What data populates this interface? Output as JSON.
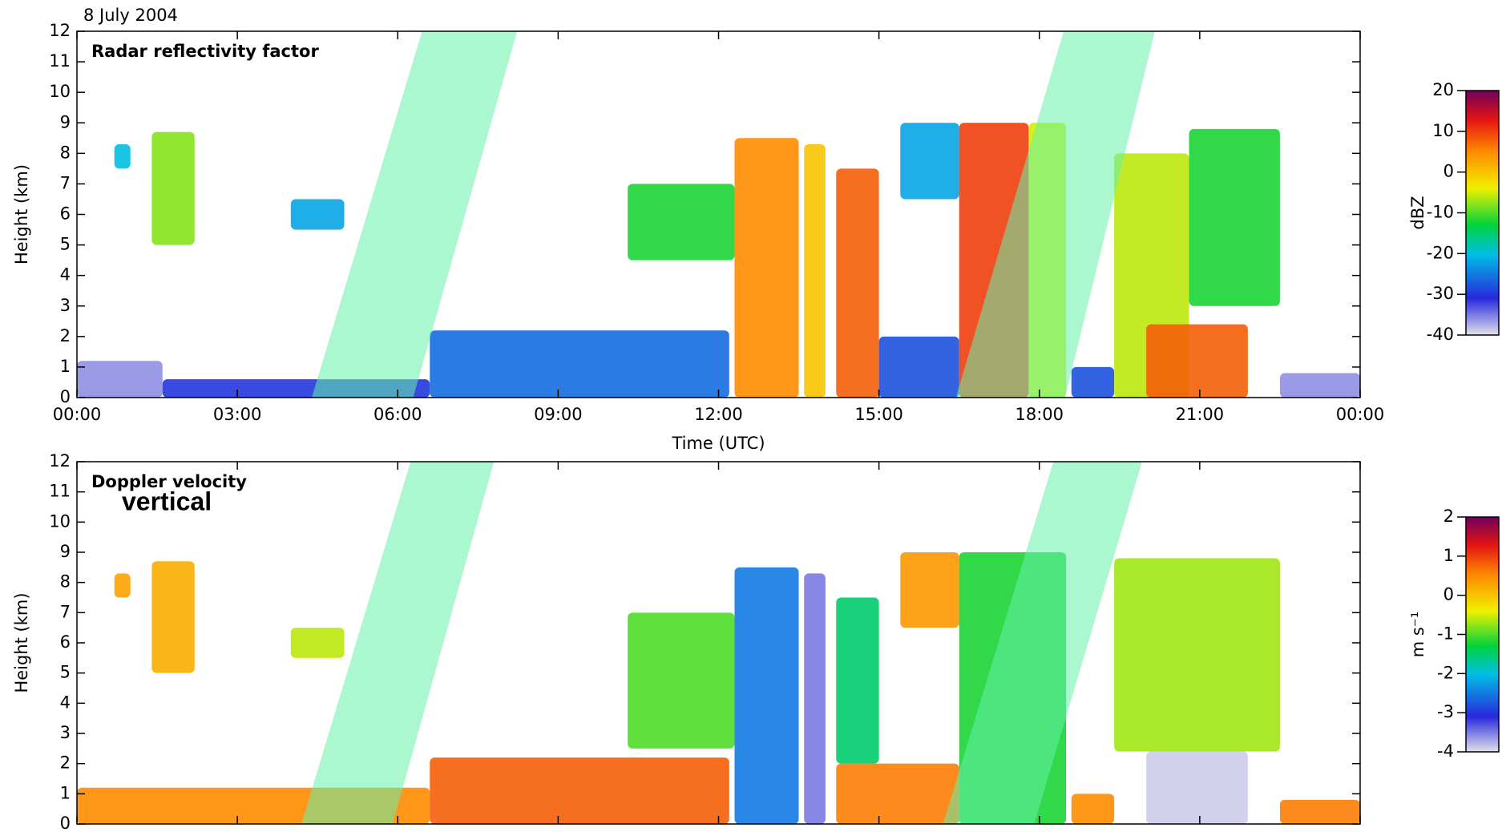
{
  "title": "8 July 2004",
  "chart_data": [
    {
      "type": "heatmap",
      "title": "Radar reflectivity factor",
      "xlabel": "Time (UTC)",
      "ylabel": "Height (km)",
      "xlim": [
        0,
        24
      ],
      "xticks": [
        {
          "value": 0,
          "label": "00:00"
        },
        {
          "value": 3,
          "label": "03:00"
        },
        {
          "value": 6,
          "label": "06:00"
        },
        {
          "value": 9,
          "label": "09:00"
        },
        {
          "value": 12,
          "label": "12:00"
        },
        {
          "value": 15,
          "label": "15:00"
        },
        {
          "value": 18,
          "label": "18:00"
        },
        {
          "value": 21,
          "label": "21:00"
        },
        {
          "value": 24,
          "label": "00:00"
        }
      ],
      "ylim": [
        0,
        12
      ],
      "yticks": [
        0,
        1,
        2,
        3,
        4,
        5,
        6,
        7,
        8,
        9,
        10,
        11,
        12
      ],
      "colorbar": {
        "label": "dBZ",
        "lim": [
          -40,
          20
        ],
        "ticks": [
          -40,
          -30,
          -20,
          -10,
          0,
          10,
          20
        ]
      },
      "cells": [
        {
          "start": 0.0,
          "end": 1.6,
          "base": 0,
          "top": 1.2,
          "value": -36
        },
        {
          "start": 1.6,
          "end": 6.6,
          "base": 0,
          "top": 0.6,
          "value": -30
        },
        {
          "start": 0.7,
          "end": 1.0,
          "base": 7.5,
          "top": 8.3,
          "value": -20
        },
        {
          "start": 1.4,
          "end": 2.2,
          "base": 5,
          "top": 8.7,
          "value": -8
        },
        {
          "start": 4.0,
          "end": 5.0,
          "base": 5.5,
          "top": 6.5,
          "value": -22
        },
        {
          "start": 6.6,
          "end": 12.2,
          "base": 0,
          "top": 2.2,
          "value": -26
        },
        {
          "start": 10.3,
          "end": 12.3,
          "base": 4.5,
          "top": 7,
          "value": -12
        },
        {
          "start": 12.3,
          "end": 13.5,
          "base": 0,
          "top": 8.5,
          "value": 5
        },
        {
          "start": 13.6,
          "end": 14.0,
          "base": 0,
          "top": 8.3,
          "value": 0
        },
        {
          "start": 14.2,
          "end": 15.0,
          "base": 0,
          "top": 7.5,
          "value": 8
        },
        {
          "start": 15.0,
          "end": 16.5,
          "base": 0,
          "top": 2,
          "value": -28
        },
        {
          "start": 15.4,
          "end": 16.5,
          "base": 6.5,
          "top": 9,
          "value": -22
        },
        {
          "start": 16.5,
          "end": 17.8,
          "base": 0,
          "top": 9,
          "value": 10
        },
        {
          "start": 17.8,
          "end": 18.5,
          "base": 0,
          "top": 9,
          "value": -5
        },
        {
          "start": 18.6,
          "end": 19.4,
          "base": 0,
          "top": 1,
          "value": -28
        },
        {
          "start": 19.4,
          "end": 20.8,
          "base": 0,
          "top": 8,
          "value": -6
        },
        {
          "start": 20.8,
          "end": 22.5,
          "base": 3,
          "top": 8.8,
          "value": -12
        },
        {
          "start": 20.0,
          "end": 21.9,
          "base": 0,
          "top": 2.4,
          "value": 8
        },
        {
          "start": 22.5,
          "end": 24.0,
          "base": 0,
          "top": 0.8,
          "value": -36
        }
      ]
    },
    {
      "type": "heatmap",
      "title": "Doppler velocity",
      "annotation": "vertical",
      "ylabel": "Height (km)",
      "xlim": [
        0,
        24
      ],
      "xticks": [
        0,
        3,
        6,
        9,
        12,
        15,
        18,
        21,
        24
      ],
      "ylim": [
        0,
        12
      ],
      "yticks": [
        0,
        1,
        2,
        3,
        4,
        5,
        6,
        7,
        8,
        9,
        10,
        11,
        12
      ],
      "colorbar": {
        "label": "m s⁻¹",
        "lim": [
          -4,
          2
        ],
        "ticks": [
          -4,
          -3,
          -2,
          -1,
          0,
          1,
          2
        ]
      },
      "cells": [
        {
          "start": 0.0,
          "end": 6.6,
          "base": 0,
          "top": 1.2,
          "value": 0.5
        },
        {
          "start": 0.7,
          "end": 1.0,
          "base": 7.5,
          "top": 8.3,
          "value": 0.3
        },
        {
          "start": 1.4,
          "end": 2.2,
          "base": 5,
          "top": 8.7,
          "value": 0.2
        },
        {
          "start": 4.0,
          "end": 5.0,
          "base": 5.5,
          "top": 6.5,
          "value": -0.6
        },
        {
          "start": 6.6,
          "end": 12.2,
          "base": 0,
          "top": 2.2,
          "value": 0.8
        },
        {
          "start": 10.3,
          "end": 12.3,
          "base": 2.5,
          "top": 7,
          "value": -1
        },
        {
          "start": 12.3,
          "end": 13.5,
          "base": 0,
          "top": 8.5,
          "value": -2.5
        },
        {
          "start": 13.6,
          "end": 14.0,
          "base": 0,
          "top": 8.3,
          "value": -3.5
        },
        {
          "start": 14.2,
          "end": 15.0,
          "base": 2,
          "top": 7.5,
          "value": -1.5
        },
        {
          "start": 14.2,
          "end": 16.5,
          "base": 0,
          "top": 2,
          "value": 0.6
        },
        {
          "start": 15.4,
          "end": 16.5,
          "base": 6.5,
          "top": 9,
          "value": 0.4
        },
        {
          "start": 16.5,
          "end": 18.5,
          "base": 0,
          "top": 9,
          "value": -1.2
        },
        {
          "start": 18.6,
          "end": 19.4,
          "base": 0,
          "top": 1,
          "value": 0.5
        },
        {
          "start": 19.4,
          "end": 22.5,
          "base": 2.4,
          "top": 8.8,
          "value": -0.7
        },
        {
          "start": 20.0,
          "end": 21.9,
          "base": 0,
          "top": 2.4,
          "value": -3.9
        },
        {
          "start": 22.5,
          "end": 24.0,
          "base": 0,
          "top": 0.8,
          "value": 0.6
        }
      ]
    }
  ]
}
